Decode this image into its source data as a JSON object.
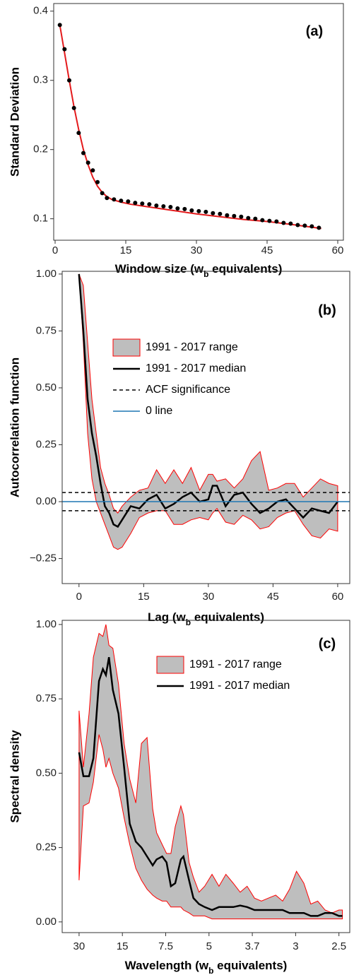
{
  "chart_data": [
    {
      "type": "scatter",
      "annotation": "(a)",
      "xlabel": [
        "Window size (w",
        "b",
        " equivalents)"
      ],
      "ylabel": "Standard Deviation",
      "xlim": [
        -0.3,
        61.2
      ],
      "ylim": [
        0.069,
        0.411
      ],
      "xticks": [
        0,
        15,
        30,
        45,
        60
      ],
      "yticks": [
        0.1,
        0.2,
        0.3,
        0.4
      ],
      "series": [
        {
          "color": "#e41a1c",
          "line": true,
          "x": [
            1,
            2,
            3,
            4,
            5,
            6,
            7,
            8,
            9,
            10,
            11,
            12,
            14,
            16,
            20,
            25,
            30,
            35,
            40,
            45,
            50,
            56.5
          ],
          "values": [
            0.38,
            0.34,
            0.3,
            0.262,
            0.229,
            0.2,
            0.178,
            0.16,
            0.147,
            0.138,
            0.132,
            0.128,
            0.124,
            0.121,
            0.117,
            0.112,
            0.107,
            0.103,
            0.099,
            0.096,
            0.092,
            0.086
          ]
        },
        {
          "color": "#000000",
          "x": [
            1,
            2,
            3,
            4,
            5,
            6,
            7,
            8,
            9,
            10,
            11,
            12.5,
            14,
            15.5,
            17,
            18.5,
            20,
            21.5,
            23,
            24.5,
            26,
            27.5,
            29,
            30.5,
            32,
            33.5,
            35,
            36.5,
            38,
            39.5,
            41,
            42.5,
            44,
            45.5,
            47,
            48.5,
            50,
            51.5,
            53,
            54.5,
            56
          ],
          "values": [
            0.38,
            0.345,
            0.3,
            0.26,
            0.224,
            0.195,
            0.181,
            0.17,
            0.153,
            0.137,
            0.13,
            0.128,
            0.126,
            0.125,
            0.123,
            0.122,
            0.121,
            0.119,
            0.118,
            0.117,
            0.115,
            0.114,
            0.112,
            0.111,
            0.11,
            0.108,
            0.107,
            0.105,
            0.104,
            0.103,
            0.101,
            0.1,
            0.098,
            0.097,
            0.096,
            0.094,
            0.093,
            0.091,
            0.09,
            0.089,
            0.087
          ]
        }
      ]
    },
    {
      "type": "band",
      "annotation": "(b)",
      "xlabel": [
        "Lag (w",
        "b",
        " equivalents)"
      ],
      "ylabel": "Autocorrelation function",
      "xlim": [
        -3.9,
        62.8
      ],
      "ylim": [
        -0.36,
        1.012
      ],
      "xticks": [
        0,
        15,
        30,
        45,
        60
      ],
      "yticks": [
        {
          "value": 1,
          "label": "1.00"
        },
        {
          "value": 0.75,
          "label": "0.75"
        },
        {
          "value": 0.5,
          "label": "0.50"
        },
        {
          "value": 0.25,
          "label": "0.25"
        },
        {
          "value": 0,
          "label": "0.00"
        },
        {
          "value": -0.25,
          "label": "−0.25"
        }
      ],
      "x": [
        0,
        1,
        2,
        3,
        4,
        5,
        6,
        7,
        8,
        9,
        10,
        12,
        14,
        16,
        18,
        20,
        22,
        24,
        26,
        28,
        30,
        31,
        32,
        34,
        36,
        38,
        40,
        42,
        44,
        46,
        48,
        50,
        52,
        54,
        56,
        58,
        60
      ],
      "series": [
        {
          "name": "1991 - 2017 range",
          "color": "#bebebe",
          "edge_color": "#ff0000",
          "upper": [
            1.0,
            0.95,
            0.7,
            0.45,
            0.3,
            0.15,
            0.08,
            0.03,
            -0.03,
            -0.05,
            -0.02,
            0.02,
            0.05,
            0.06,
            0.14,
            0.08,
            0.14,
            0.08,
            0.15,
            0.05,
            0.12,
            0.12,
            0.09,
            0.1,
            0.06,
            0.1,
            0.18,
            0.22,
            0.05,
            0.06,
            0.08,
            0.08,
            0.02,
            0.06,
            0.1,
            0.08,
            0.07
          ],
          "lower": [
            1.0,
            0.7,
            0.3,
            0.1,
            0.0,
            -0.05,
            -0.1,
            -0.15,
            -0.2,
            -0.21,
            -0.2,
            -0.14,
            -0.07,
            -0.05,
            -0.04,
            -0.04,
            -0.1,
            -0.1,
            -0.08,
            -0.07,
            -0.08,
            -0.05,
            -0.03,
            -0.09,
            -0.1,
            -0.06,
            -0.08,
            -0.12,
            -0.11,
            -0.07,
            -0.05,
            -0.04,
            -0.1,
            -0.15,
            -0.16,
            -0.12,
            -0.13
          ]
        },
        {
          "name": "1991 - 2017 median",
          "color": "#000000",
          "values": [
            1.0,
            0.75,
            0.45,
            0.3,
            0.2,
            0.08,
            -0.02,
            -0.05,
            -0.1,
            -0.11,
            -0.08,
            -0.02,
            -0.03,
            0.01,
            0.03,
            -0.03,
            -0.01,
            0.02,
            0.04,
            0.0,
            0.01,
            0.07,
            0.07,
            -0.02,
            0.03,
            0.04,
            -0.01,
            -0.05,
            -0.03,
            0.0,
            0.01,
            -0.03,
            -0.07,
            -0.03,
            -0.04,
            -0.05,
            0.0
          ]
        }
      ],
      "reference_lines": [
        {
          "name": "ACF significance",
          "values": [
            0.04,
            -0.04
          ],
          "color": "#000000",
          "dashed": true
        },
        {
          "name": "0 line",
          "values": [
            0
          ],
          "color": "#1f77b4"
        }
      ]
    },
    {
      "type": "band",
      "annotation": "(c)",
      "xlabel": [
        "Wavelength (w",
        "b",
        " equivalents)"
      ],
      "ylabel": "Spectral density",
      "xlim": [
        -0.39,
        6.25
      ],
      "ylim": [
        -0.036,
        1.014
      ],
      "xticks": [
        {
          "value": 0,
          "label": "30"
        },
        {
          "value": 1,
          "label": "15"
        },
        {
          "value": 2,
          "label": "7.5"
        },
        {
          "value": 3,
          "label": "5"
        },
        {
          "value": 4,
          "label": "3.7"
        },
        {
          "value": 5,
          "label": "3"
        },
        {
          "value": 6,
          "label": "2.5"
        }
      ],
      "yticks": [
        {
          "value": 1,
          "label": "1.00"
        },
        {
          "value": 0.75,
          "label": "0.75"
        },
        {
          "value": 0.5,
          "label": "0.50"
        },
        {
          "value": 0.25,
          "label": "0.25"
        },
        {
          "value": 0,
          "label": "0.00"
        }
      ],
      "x": [
        0,
        0.1,
        0.23,
        0.33,
        0.46,
        0.55,
        0.62,
        0.69,
        0.78,
        0.91,
        1.04,
        1.17,
        1.31,
        1.44,
        1.57,
        1.7,
        1.79,
        1.92,
        2.02,
        2.12,
        2.22,
        2.35,
        2.41,
        2.54,
        2.64,
        2.77,
        2.9,
        3.07,
        3.23,
        3.39,
        3.56,
        3.72,
        3.88,
        4.05,
        4.21,
        4.37,
        4.54,
        4.7,
        4.86,
        5.02,
        5.19,
        5.35,
        5.51,
        5.68,
        5.84,
        6.0,
        6.08
      ],
      "series": [
        {
          "name": "1991 - 2017 range",
          "color": "#bebebe",
          "edge_color": "#ff0000",
          "upper": [
            0.71,
            0.52,
            0.7,
            0.89,
            0.97,
            0.96,
            1.0,
            0.93,
            0.92,
            0.8,
            0.6,
            0.48,
            0.4,
            0.6,
            0.62,
            0.38,
            0.3,
            0.26,
            0.23,
            0.23,
            0.32,
            0.39,
            0.36,
            0.2,
            0.15,
            0.1,
            0.12,
            0.16,
            0.12,
            0.16,
            0.13,
            0.1,
            0.12,
            0.08,
            0.07,
            0.08,
            0.09,
            0.07,
            0.11,
            0.17,
            0.13,
            0.06,
            0.07,
            0.04,
            0.03,
            0.04,
            0.04
          ],
          "lower": [
            0.14,
            0.39,
            0.4,
            0.47,
            0.63,
            0.58,
            0.52,
            0.55,
            0.5,
            0.45,
            0.35,
            0.26,
            0.18,
            0.14,
            0.11,
            0.09,
            0.08,
            0.07,
            0.07,
            0.05,
            0.05,
            0.05,
            0.04,
            0.03,
            0.02,
            0.02,
            0.02,
            0.01,
            0.01,
            0.01,
            0.01,
            0.01,
            0.01,
            0.01,
            0.01,
            0.01,
            0.01,
            0.01,
            0.01,
            0.01,
            0.01,
            0.01,
            0.01,
            0.01,
            0.01,
            0.01,
            0.01
          ]
        },
        {
          "name": "1991 - 2017 median",
          "color": "#000000",
          "values": [
            0.57,
            0.49,
            0.49,
            0.55,
            0.81,
            0.85,
            0.83,
            0.89,
            0.78,
            0.7,
            0.52,
            0.33,
            0.27,
            0.25,
            0.22,
            0.19,
            0.21,
            0.22,
            0.2,
            0.12,
            0.13,
            0.21,
            0.22,
            0.14,
            0.08,
            0.06,
            0.05,
            0.04,
            0.05,
            0.05,
            0.05,
            0.055,
            0.05,
            0.04,
            0.04,
            0.04,
            0.04,
            0.04,
            0.03,
            0.03,
            0.03,
            0.02,
            0.02,
            0.03,
            0.03,
            0.02,
            0.02
          ]
        }
      ]
    }
  ]
}
